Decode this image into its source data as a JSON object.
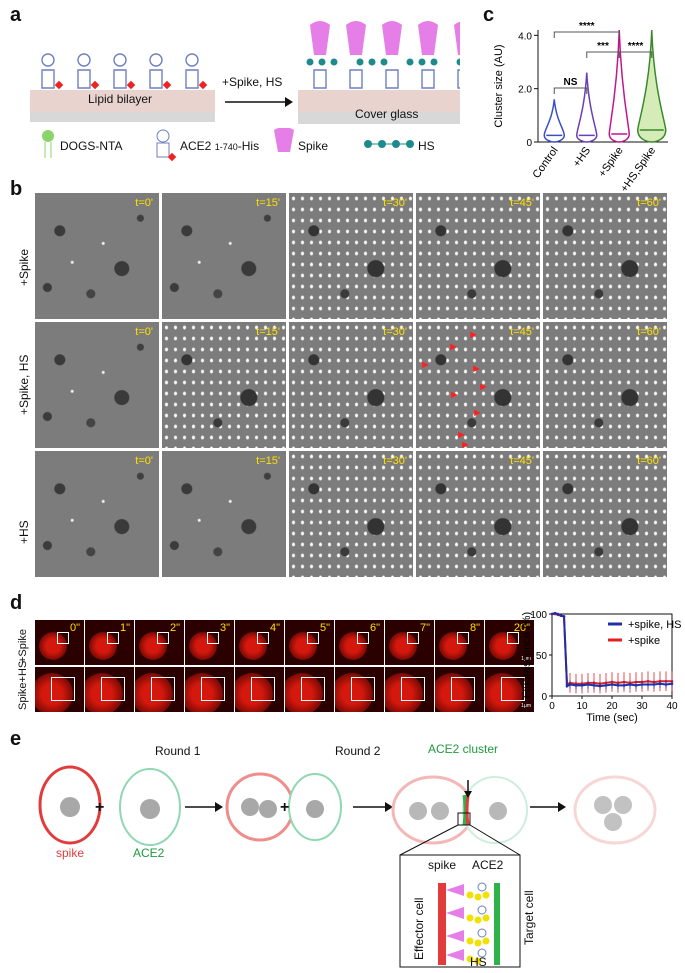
{
  "panels": {
    "a": "a",
    "b": "b",
    "c": "c",
    "d": "d",
    "e": "e"
  },
  "panel_a": {
    "bilayer_label": "Lipid bilayer",
    "glass_label": "Cover glass",
    "arrow_label": "+Spike, HS",
    "legend": [
      {
        "label": "DOGS-NTA",
        "icon": "dogs-nta-icon"
      },
      {
        "label": "ACE2",
        "subscript": "1-740",
        "suffix": "-His",
        "icon": "ace2-icon"
      },
      {
        "label": "Spike",
        "icon": "spike-icon"
      },
      {
        "label": "HS",
        "icon": "hs-icon"
      }
    ]
  },
  "panel_b": {
    "rows": [
      {
        "label": "+Spike",
        "times": [
          "t=0'",
          "t=15'",
          "t=30'",
          "t=45'",
          "t=60'"
        ]
      },
      {
        "label": "+Spike, HS",
        "times": [
          "t=0'",
          "t=15'",
          "t=30'",
          "t=45'",
          "t=60'"
        ]
      },
      {
        "label": "+HS",
        "times": [
          "t=0'",
          "t=15'",
          "t=30'",
          "t=45'",
          "t=60'"
        ]
      }
    ]
  },
  "panel_d": {
    "rows": [
      {
        "label": "+Spike",
        "times": [
          "0\"",
          "1\"",
          "2\"",
          "3\"",
          "4\"",
          "5\"",
          "6\"",
          "7\"",
          "8\"",
          "20\""
        ],
        "scale": "1μm"
      },
      {
        "label": "Spike+HS",
        "times": [
          "",
          "",
          "",
          "",
          "",
          "",
          "",
          "",
          "",
          ""
        ],
        "scale": "1μm"
      }
    ]
  },
  "panel_e": {
    "round1": "Round 1",
    "round2": "Round 2",
    "spike_label": "spike",
    "ace2_label": "ACE2",
    "cluster_label": "ACE2 cluster",
    "plus": "+",
    "inset": {
      "spike": "spike",
      "ace2": "ACE2",
      "effector": "Effector cell",
      "target": "Target cell",
      "hs": "HS"
    }
  },
  "chart_data": [
    {
      "type": "violin",
      "panel": "c",
      "categories": [
        "Control",
        "+HS",
        "+Spike",
        "+HS,Spike"
      ],
      "ylabel": "Cluster size (AU)",
      "yticks": [
        0,
        2.0,
        4.0
      ],
      "ylim": [
        0,
        4.2
      ],
      "values_median": [
        0.25,
        0.25,
        0.3,
        0.45
      ],
      "values_max": [
        1.6,
        2.6,
        4.2,
        4.2
      ],
      "colors": [
        "#3b4fc4",
        "#6a3fb5",
        "#c0178d",
        "#3a8a2a"
      ],
      "annotations": [
        {
          "label": "NS",
          "between": [
            "Control",
            "+HS"
          ]
        },
        {
          "label": "***",
          "between": [
            "+HS",
            "+Spike"
          ]
        },
        {
          "label": "****",
          "between": [
            "+Spike",
            "+HS,Spike"
          ]
        },
        {
          "label": "****",
          "between": [
            "Control",
            "+Spike"
          ]
        }
      ]
    },
    {
      "type": "line",
      "panel": "d",
      "xlabel": "Time (sec)",
      "ylabel": "Fluorescence (%)",
      "xlim": [
        0,
        40
      ],
      "ylim": [
        0,
        100
      ],
      "xticks": [
        0,
        10,
        20,
        30,
        40
      ],
      "yticks": [
        0,
        50,
        100
      ],
      "series": [
        {
          "name": "+spike, HS",
          "color": "#1f2fa8",
          "x": [
            0,
            1,
            2,
            3,
            4,
            5,
            6,
            8,
            10,
            12,
            14,
            16,
            18,
            20,
            22,
            24,
            26,
            28,
            30,
            32,
            34,
            36,
            38,
            40
          ],
          "y": [
            100,
            101,
            100,
            98,
            97,
            12,
            14,
            13,
            13,
            14,
            13,
            12,
            13,
            14,
            13,
            13,
            14,
            13,
            14,
            14,
            14,
            15,
            14,
            15
          ]
        },
        {
          "name": "+spike",
          "color": "#e02020",
          "x": [
            0,
            1,
            2,
            3,
            4,
            5,
            6,
            8,
            10,
            12,
            14,
            16,
            18,
            20,
            22,
            24,
            26,
            28,
            30,
            32,
            34,
            36,
            38,
            40
          ],
          "y": [
            100,
            100,
            99,
            98,
            97,
            14,
            16,
            15,
            15,
            16,
            16,
            15,
            16,
            17,
            16,
            17,
            16,
            17,
            17,
            18,
            17,
            18,
            18,
            18
          ]
        }
      ]
    }
  ]
}
